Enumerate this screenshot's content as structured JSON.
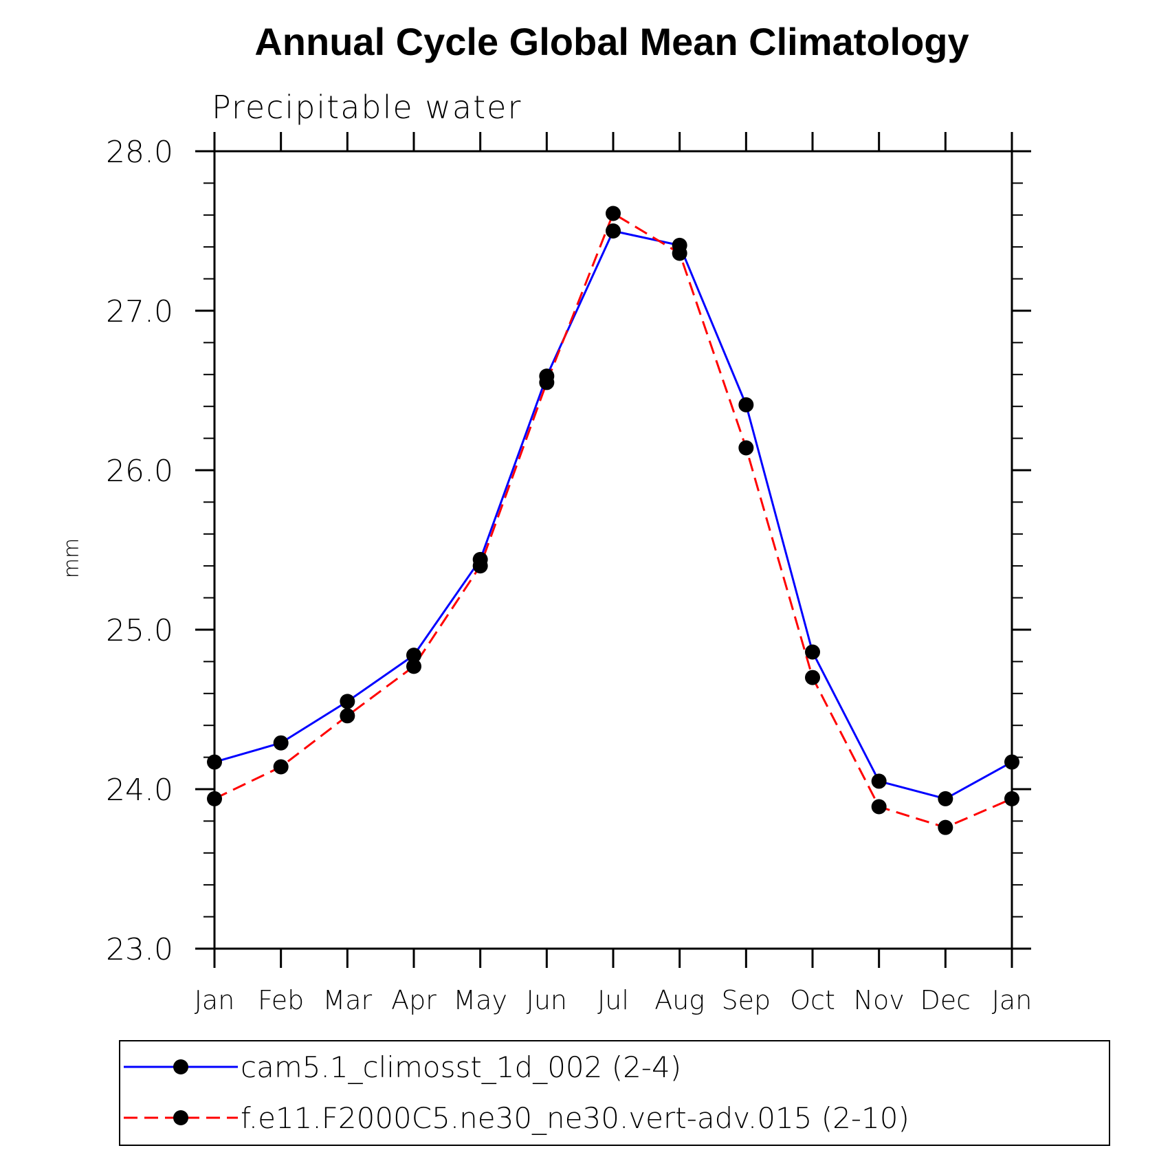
{
  "chart_data": {
    "type": "line",
    "title": "Annual Cycle Global Mean Climatology",
    "subtitle": "Precipitable water",
    "xlabel": "",
    "ylabel": "mm",
    "categories": [
      "Jan",
      "Feb",
      "Mar",
      "Apr",
      "May",
      "Jun",
      "Jul",
      "Aug",
      "Sep",
      "Oct",
      "Nov",
      "Dec",
      "Jan"
    ],
    "yticks": [
      "23.0",
      "24.0",
      "25.0",
      "26.0",
      "27.0",
      "28.0"
    ],
    "ylim": [
      23.0,
      28.0
    ],
    "grid": false,
    "legend_position": "bottom",
    "series": [
      {
        "name": "cam5.1_climosst_1d_002 (2-4)",
        "color": "#0000ff",
        "line_style": "solid",
        "marker": "filled-circle",
        "values": [
          24.17,
          24.29,
          24.55,
          24.84,
          25.44,
          26.59,
          27.5,
          27.41,
          26.41,
          24.86,
          24.05,
          23.94,
          24.17
        ]
      },
      {
        "name": "f.e11.F2000C5.ne30_ne30.vert-adv.015 (2-10)",
        "color": "#ff0000",
        "line_style": "dashed",
        "marker": "filled-circle",
        "values": [
          23.94,
          24.14,
          24.46,
          24.77,
          25.4,
          26.55,
          27.61,
          27.36,
          26.14,
          24.7,
          23.89,
          23.76,
          23.94
        ]
      }
    ]
  }
}
